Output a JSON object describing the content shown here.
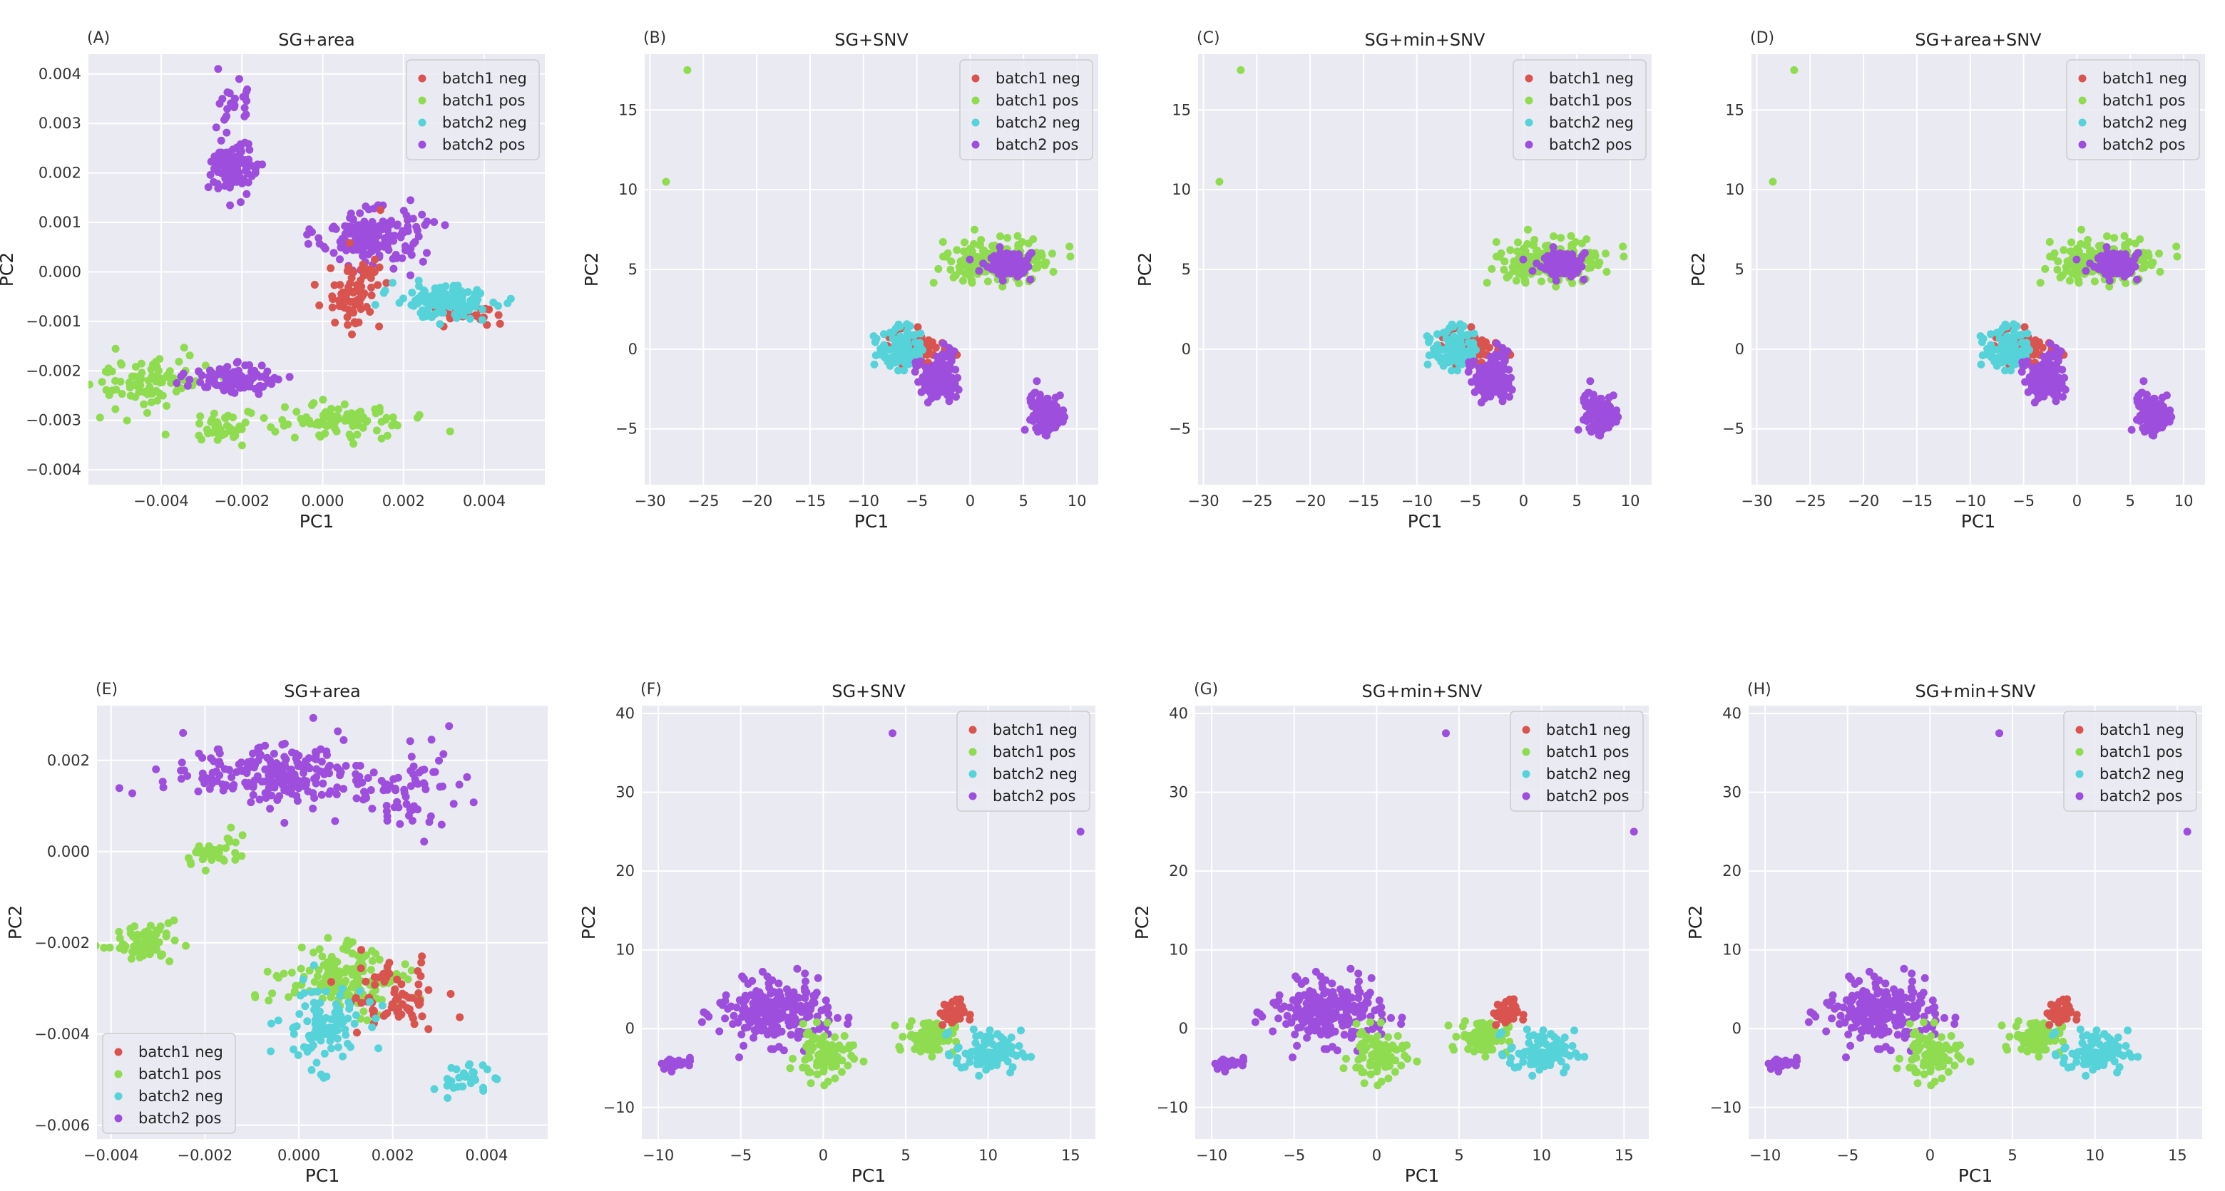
{
  "series_colors": {
    "batch1 neg": "#d9534f",
    "batch1 pos": "#8fdc50",
    "batch2 neg": "#56d3d9",
    "batch2 pos": "#9d4edd"
  },
  "chart_data": [
    {
      "panel_label": "(A)",
      "title": "SG+area",
      "type": "scatter",
      "xlabel": "PC1",
      "ylabel": "PC2",
      "xlim": [
        -0.0058,
        0.0055
      ],
      "ylim": [
        -0.0043,
        0.0044
      ],
      "xticks": [
        -0.004,
        -0.002,
        0.0,
        0.002,
        0.004
      ],
      "xtick_labels": [
        "−0.004",
        "−0.002",
        "0.000",
        "0.002",
        "0.004"
      ],
      "yticks": [
        -0.004,
        -0.003,
        -0.002,
        -0.001,
        0.0,
        0.001,
        0.002,
        0.003,
        0.004
      ],
      "ytick_labels": [
        "−0.004",
        "−0.003",
        "−0.002",
        "−0.001",
        "0.000",
        "0.001",
        "0.002",
        "0.003",
        "0.004"
      ],
      "legend": {
        "loc": "top-right",
        "entries": [
          "batch1 neg",
          "batch1 pos",
          "batch2 neg",
          "batch2 pos"
        ]
      },
      "clusters": [
        {
          "series": "batch1 pos",
          "cx": -0.0043,
          "cy": -0.0022,
          "sx": 0.0012,
          "sy": 0.0005,
          "n": 90
        },
        {
          "series": "batch1 pos",
          "cx": 0.0005,
          "cy": -0.003,
          "sx": 0.0015,
          "sy": 0.0004,
          "n": 90
        },
        {
          "series": "batch1 pos",
          "cx": -0.0025,
          "cy": -0.0032,
          "sx": 0.0008,
          "sy": 0.0003,
          "n": 40
        },
        {
          "series": "batch2 pos",
          "cx": -0.0022,
          "cy": -0.0022,
          "sx": 0.001,
          "sy": 0.00025,
          "n": 120
        },
        {
          "series": "batch2 pos",
          "cx": -0.0022,
          "cy": 0.0021,
          "sx": 0.0005,
          "sy": 0.0005,
          "n": 120
        },
        {
          "series": "batch2 pos",
          "cx": -0.0022,
          "cy": 0.0034,
          "sx": 0.0003,
          "sy": 0.0004,
          "n": 25
        },
        {
          "series": "batch2 pos",
          "cx": 0.0012,
          "cy": 0.0007,
          "sx": 0.0012,
          "sy": 0.0005,
          "n": 170
        },
        {
          "series": "batch1 neg",
          "cx": 0.0008,
          "cy": -0.0004,
          "sx": 0.0006,
          "sy": 0.0007,
          "n": 80
        },
        {
          "series": "batch1 neg",
          "cx": 0.0035,
          "cy": -0.0008,
          "sx": 0.0007,
          "sy": 0.0002,
          "n": 30
        },
        {
          "series": "batch2 neg",
          "cx": 0.003,
          "cy": -0.0006,
          "sx": 0.0011,
          "sy": 0.0003,
          "n": 140
        }
      ]
    },
    {
      "panel_label": "(B)",
      "title": "SG+SNV",
      "type": "scatter",
      "xlabel": "PC1",
      "ylabel": "PC2",
      "xlim": [
        -30.5,
        12
      ],
      "ylim": [
        -8.5,
        18.5
      ],
      "xticks": [
        -30,
        -25,
        -20,
        -15,
        -10,
        -5,
        0,
        5,
        10
      ],
      "xtick_labels": [
        "−30",
        "−25",
        "−20",
        "−15",
        "−10",
        "−5",
        "0",
        "5",
        "10"
      ],
      "yticks": [
        -5,
        0,
        5,
        10,
        15
      ],
      "ytick_labels": [
        "−5",
        "0",
        "5",
        "10",
        "15"
      ],
      "legend": {
        "loc": "top-right",
        "entries": [
          "batch1 neg",
          "batch1 pos",
          "batch2 neg",
          "batch2 pos"
        ]
      },
      "outliers": [
        {
          "series": "batch1 pos",
          "x": -26.5,
          "y": 17.5
        },
        {
          "series": "batch1 pos",
          "x": -28.5,
          "y": 10.5
        }
      ],
      "clusters": [
        {
          "series": "batch1 pos",
          "cx": 2.5,
          "cy": 5.5,
          "sx": 4.5,
          "sy": 1.2,
          "n": 190
        },
        {
          "series": "batch2 pos",
          "cx": 3.5,
          "cy": 5.3,
          "sx": 2.0,
          "sy": 0.8,
          "n": 80
        },
        {
          "series": "batch1 neg",
          "cx": -4.5,
          "cy": 0.0,
          "sx": 2.3,
          "sy": 1.2,
          "n": 70
        },
        {
          "series": "batch2 neg",
          "cx": -6.5,
          "cy": 0.0,
          "sx": 2.0,
          "sy": 1.0,
          "n": 110
        },
        {
          "series": "batch2 pos",
          "cx": -3.0,
          "cy": -1.8,
          "sx": 1.8,
          "sy": 1.4,
          "n": 140
        },
        {
          "series": "batch2 pos",
          "cx": 7.0,
          "cy": -4.0,
          "sx": 1.5,
          "sy": 1.2,
          "n": 110
        }
      ]
    },
    {
      "panel_label": "(C)",
      "title": "SG+min+SNV",
      "type": "scatter",
      "xlabel": "PC1",
      "ylabel": "PC2",
      "xlim": [
        -30.5,
        12
      ],
      "ylim": [
        -8.5,
        18.5
      ],
      "xticks": [
        -30,
        -25,
        -20,
        -15,
        -10,
        -5,
        0,
        5,
        10
      ],
      "xtick_labels": [
        "−30",
        "−25",
        "−20",
        "−15",
        "−10",
        "−5",
        "0",
        "5",
        "10"
      ],
      "yticks": [
        -5,
        0,
        5,
        10,
        15
      ],
      "ytick_labels": [
        "−5",
        "0",
        "5",
        "10",
        "15"
      ],
      "legend": {
        "loc": "top-right",
        "entries": [
          "batch1 neg",
          "batch1 pos",
          "batch2 neg",
          "batch2 pos"
        ]
      },
      "outliers": [
        {
          "series": "batch1 pos",
          "x": -26.5,
          "y": 17.5
        },
        {
          "series": "batch1 pos",
          "x": -28.5,
          "y": 10.5
        }
      ],
      "clusters": [
        {
          "series": "batch1 pos",
          "cx": 2.5,
          "cy": 5.5,
          "sx": 4.5,
          "sy": 1.2,
          "n": 190
        },
        {
          "series": "batch2 pos",
          "cx": 3.5,
          "cy": 5.3,
          "sx": 2.0,
          "sy": 0.8,
          "n": 80
        },
        {
          "series": "batch1 neg",
          "cx": -4.5,
          "cy": 0.0,
          "sx": 2.3,
          "sy": 1.2,
          "n": 70
        },
        {
          "series": "batch2 neg",
          "cx": -6.5,
          "cy": 0.0,
          "sx": 2.0,
          "sy": 1.0,
          "n": 110
        },
        {
          "series": "batch2 pos",
          "cx": -3.0,
          "cy": -1.8,
          "sx": 1.8,
          "sy": 1.4,
          "n": 140
        },
        {
          "series": "batch2 pos",
          "cx": 7.0,
          "cy": -4.0,
          "sx": 1.5,
          "sy": 1.2,
          "n": 110
        }
      ]
    },
    {
      "panel_label": "(D)",
      "title": "SG+area+SNV",
      "type": "scatter",
      "xlabel": "PC1",
      "ylabel": "PC2",
      "xlim": [
        -30.5,
        12
      ],
      "ylim": [
        -8.5,
        18.5
      ],
      "xticks": [
        -30,
        -25,
        -20,
        -15,
        -10,
        -5,
        0,
        5,
        10
      ],
      "xtick_labels": [
        "−30",
        "−25",
        "−20",
        "−15",
        "−10",
        "−5",
        "0",
        "5",
        "10"
      ],
      "yticks": [
        -5,
        0,
        5,
        10,
        15
      ],
      "ytick_labels": [
        "−5",
        "0",
        "5",
        "10",
        "15"
      ],
      "legend": {
        "loc": "top-right",
        "entries": [
          "batch1 neg",
          "batch1 pos",
          "batch2 neg",
          "batch2 pos"
        ]
      },
      "outliers": [
        {
          "series": "batch1 pos",
          "x": -26.5,
          "y": 17.5
        },
        {
          "series": "batch1 pos",
          "x": -28.5,
          "y": 10.5
        }
      ],
      "clusters": [
        {
          "series": "batch1 pos",
          "cx": 2.5,
          "cy": 5.5,
          "sx": 4.5,
          "sy": 1.2,
          "n": 190
        },
        {
          "series": "batch2 pos",
          "cx": 3.5,
          "cy": 5.3,
          "sx": 2.0,
          "sy": 0.8,
          "n": 80
        },
        {
          "series": "batch1 neg",
          "cx": -4.5,
          "cy": 0.0,
          "sx": 2.3,
          "sy": 1.2,
          "n": 70
        },
        {
          "series": "batch2 neg",
          "cx": -6.5,
          "cy": 0.0,
          "sx": 2.0,
          "sy": 1.0,
          "n": 110
        },
        {
          "series": "batch2 pos",
          "cx": -3.0,
          "cy": -1.8,
          "sx": 1.8,
          "sy": 1.4,
          "n": 140
        },
        {
          "series": "batch2 pos",
          "cx": 7.0,
          "cy": -4.0,
          "sx": 1.5,
          "sy": 1.2,
          "n": 110
        }
      ]
    },
    {
      "panel_label": "(E)",
      "title": "SG+area",
      "type": "scatter",
      "xlabel": "PC1",
      "ylabel": "PC2",
      "xlim": [
        -0.0043,
        0.0053
      ],
      "ylim": [
        -0.0063,
        0.0032
      ],
      "xticks": [
        -0.004,
        -0.002,
        0.0,
        0.002,
        0.004
      ],
      "xtick_labels": [
        "−0.004",
        "−0.002",
        "0.000",
        "0.002",
        "0.004"
      ],
      "yticks": [
        -0.006,
        -0.004,
        -0.002,
        0.0,
        0.002
      ],
      "ytick_labels": [
        "−0.006",
        "−0.004",
        "−0.002",
        "0.000",
        "0.002"
      ],
      "legend": {
        "loc": "bottom-left",
        "entries": [
          "batch1 neg",
          "batch1 pos",
          "batch2 neg",
          "batch2 pos"
        ]
      },
      "clusters": [
        {
          "series": "batch2 pos",
          "cx": -0.0005,
          "cy": 0.0017,
          "sx": 0.0018,
          "sy": 0.0006,
          "n": 220
        },
        {
          "series": "batch2 pos",
          "cx": 0.0025,
          "cy": 0.0012,
          "sx": 0.001,
          "sy": 0.0008,
          "n": 60
        },
        {
          "series": "batch1 pos",
          "cx": -0.0018,
          "cy": 0.0,
          "sx": 0.0006,
          "sy": 0.0003,
          "n": 40
        },
        {
          "series": "batch1 pos",
          "cx": -0.0033,
          "cy": -0.002,
          "sx": 0.0006,
          "sy": 0.0004,
          "n": 70
        },
        {
          "series": "batch1 pos",
          "cx": 0.001,
          "cy": -0.0028,
          "sx": 0.0012,
          "sy": 0.0006,
          "n": 160
        },
        {
          "series": "batch1 neg",
          "cx": 0.002,
          "cy": -0.0032,
          "sx": 0.001,
          "sy": 0.0007,
          "n": 70
        },
        {
          "series": "batch2 neg",
          "cx": 0.0005,
          "cy": -0.0038,
          "sx": 0.0008,
          "sy": 0.0008,
          "n": 110
        },
        {
          "series": "batch2 neg",
          "cx": 0.0035,
          "cy": -0.005,
          "sx": 0.0005,
          "sy": 0.0003,
          "n": 30
        }
      ]
    },
    {
      "panel_label": "(F)",
      "title": "SG+SNV",
      "type": "scatter",
      "xlabel": "PC1",
      "ylabel": "PC2",
      "xlim": [
        -11,
        16.5
      ],
      "ylim": [
        -14,
        41
      ],
      "xticks": [
        -10,
        -5,
        0,
        5,
        10,
        15
      ],
      "xtick_labels": [
        "−10",
        "−5",
        "0",
        "5",
        "10",
        "15"
      ],
      "yticks": [
        -10,
        0,
        10,
        20,
        30,
        40
      ],
      "ytick_labels": [
        "−10",
        "0",
        "10",
        "20",
        "30",
        "40"
      ],
      "legend": {
        "loc": "top-right",
        "entries": [
          "batch1 neg",
          "batch1 pos",
          "batch2 neg",
          "batch2 pos"
        ]
      },
      "outliers": [
        {
          "series": "batch2 pos",
          "x": 4.2,
          "y": 37.5
        },
        {
          "series": "batch2 pos",
          "x": 15.6,
          "y": 25.0
        }
      ],
      "clusters": [
        {
          "series": "batch2 pos",
          "cx": -3.0,
          "cy": 2.0,
          "sx": 3.0,
          "sy": 3.5,
          "n": 230
        },
        {
          "series": "batch2 pos",
          "cx": -9.0,
          "cy": -4.5,
          "sx": 1.0,
          "sy": 0.8,
          "n": 25
        },
        {
          "series": "batch1 pos",
          "cx": 0.0,
          "cy": -3.5,
          "sx": 1.5,
          "sy": 3.0,
          "n": 80
        },
        {
          "series": "batch1 pos",
          "cx": 6.5,
          "cy": -1.0,
          "sx": 1.3,
          "sy": 2.0,
          "n": 100
        },
        {
          "series": "batch1 neg",
          "cx": 7.8,
          "cy": 2.0,
          "sx": 0.7,
          "sy": 1.5,
          "n": 40
        },
        {
          "series": "batch2 neg",
          "cx": 10.0,
          "cy": -3.0,
          "sx": 1.8,
          "sy": 2.5,
          "n": 90
        }
      ]
    },
    {
      "panel_label": "(G)",
      "title": "SG+min+SNV",
      "type": "scatter",
      "xlabel": "PC1",
      "ylabel": "PC2",
      "xlim": [
        -11,
        16.5
      ],
      "ylim": [
        -14,
        41
      ],
      "xticks": [
        -10,
        -5,
        0,
        5,
        10,
        15
      ],
      "xtick_labels": [
        "−10",
        "−5",
        "0",
        "5",
        "10",
        "15"
      ],
      "yticks": [
        -10,
        0,
        10,
        20,
        30,
        40
      ],
      "ytick_labels": [
        "−10",
        "0",
        "10",
        "20",
        "30",
        "40"
      ],
      "legend": {
        "loc": "top-right",
        "entries": [
          "batch1 neg",
          "batch1 pos",
          "batch2 neg",
          "batch2 pos"
        ]
      },
      "outliers": [
        {
          "series": "batch2 pos",
          "x": 4.2,
          "y": 37.5
        },
        {
          "series": "batch2 pos",
          "x": 15.6,
          "y": 25.0
        }
      ],
      "clusters": [
        {
          "series": "batch2 pos",
          "cx": -3.0,
          "cy": 2.0,
          "sx": 3.0,
          "sy": 3.5,
          "n": 230
        },
        {
          "series": "batch2 pos",
          "cx": -9.0,
          "cy": -4.5,
          "sx": 1.0,
          "sy": 0.8,
          "n": 25
        },
        {
          "series": "batch1 pos",
          "cx": 0.0,
          "cy": -3.5,
          "sx": 1.5,
          "sy": 3.0,
          "n": 80
        },
        {
          "series": "batch1 pos",
          "cx": 6.5,
          "cy": -1.0,
          "sx": 1.3,
          "sy": 2.0,
          "n": 100
        },
        {
          "series": "batch1 neg",
          "cx": 7.8,
          "cy": 2.0,
          "sx": 0.7,
          "sy": 1.5,
          "n": 40
        },
        {
          "series": "batch2 neg",
          "cx": 10.0,
          "cy": -3.0,
          "sx": 1.8,
          "sy": 2.5,
          "n": 90
        }
      ]
    },
    {
      "panel_label": "(H)",
      "title": "SG+min+SNV",
      "type": "scatter",
      "xlabel": "PC1",
      "ylabel": "PC2",
      "xlim": [
        -11,
        16.5
      ],
      "ylim": [
        -14,
        41
      ],
      "xticks": [
        -10,
        -5,
        0,
        5,
        10,
        15
      ],
      "xtick_labels": [
        "−10",
        "−5",
        "0",
        "5",
        "10",
        "15"
      ],
      "yticks": [
        -10,
        0,
        10,
        20,
        30,
        40
      ],
      "ytick_labels": [
        "−10",
        "0",
        "10",
        "20",
        "30",
        "40"
      ],
      "legend": {
        "loc": "top-right",
        "entries": [
          "batch1 neg",
          "batch1 pos",
          "batch2 neg",
          "batch2 pos"
        ]
      },
      "outliers": [
        {
          "series": "batch2 pos",
          "x": 4.2,
          "y": 37.5
        },
        {
          "series": "batch2 pos",
          "x": 15.6,
          "y": 25.0
        }
      ],
      "clusters": [
        {
          "series": "batch2 pos",
          "cx": -3.0,
          "cy": 2.0,
          "sx": 3.0,
          "sy": 3.5,
          "n": 230
        },
        {
          "series": "batch2 pos",
          "cx": -9.0,
          "cy": -4.5,
          "sx": 1.0,
          "sy": 0.8,
          "n": 25
        },
        {
          "series": "batch1 pos",
          "cx": 0.0,
          "cy": -3.5,
          "sx": 1.5,
          "sy": 3.0,
          "n": 80
        },
        {
          "series": "batch1 pos",
          "cx": 6.5,
          "cy": -1.0,
          "sx": 1.3,
          "sy": 2.0,
          "n": 100
        },
        {
          "series": "batch1 neg",
          "cx": 7.8,
          "cy": 2.0,
          "sx": 0.7,
          "sy": 1.5,
          "n": 40
        },
        {
          "series": "batch2 neg",
          "cx": 10.0,
          "cy": -3.0,
          "sx": 1.8,
          "sy": 2.5,
          "n": 90
        }
      ]
    }
  ]
}
